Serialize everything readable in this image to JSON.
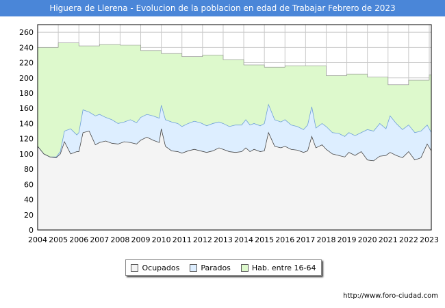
{
  "title": "Higuera de Llerena - Evolucion de la poblacion en edad de Trabajar Febrero de 2023",
  "source": "http://www.foro-ciudad.com",
  "colors": {
    "ocupados_fill": "#f4f4f4",
    "parados_fill": "#ddeeff",
    "hab_fill": "#ddf9cc",
    "line": "#444444",
    "grid": "#c8c8c8"
  },
  "chart_data": {
    "type": "area",
    "title": "Higuera de Llerena - Evolucion de la poblacion en edad de Trabajar Febrero de 2023",
    "xlim": [
      2004,
      2023.1
    ],
    "ylim": [
      0,
      270
    ],
    "yticks": [
      0,
      20,
      40,
      60,
      80,
      100,
      120,
      140,
      160,
      180,
      200,
      220,
      240,
      260
    ],
    "xticks": [
      "2004",
      "2005",
      "2006",
      "2007",
      "2008",
      "2009",
      "2010",
      "2011",
      "2012",
      "2013",
      "2014",
      "2015",
      "2016",
      "2017",
      "2018",
      "2019",
      "2020",
      "2021",
      "2022",
      "2023"
    ],
    "grid": true,
    "legend_position": "bottom-center",
    "legend": [
      "Ocupados",
      "Parados",
      "Hab. entre 16-64"
    ],
    "series": [
      {
        "name": "Hab. entre 16-64",
        "step": true,
        "x": [
          2004,
          2005,
          2006,
          2007,
          2008,
          2009,
          2010,
          2011,
          2012,
          2013,
          2014,
          2015,
          2016,
          2017,
          2018,
          2019,
          2020,
          2021,
          2022,
          2023
        ],
        "values": [
          240,
          246,
          242,
          244,
          243,
          236,
          232,
          228,
          230,
          224,
          217,
          214,
          216,
          216,
          203,
          205,
          201,
          191,
          197,
          204
        ]
      },
      {
        "name": "Parados",
        "x": [
          2004.0,
          2004.3,
          2004.6,
          2004.9,
          2005.1,
          2005.3,
          2005.6,
          2005.9,
          2006.0,
          2006.2,
          2006.5,
          2006.8,
          2007.0,
          2007.3,
          2007.6,
          2007.9,
          2008.2,
          2008.5,
          2008.8,
          2009.0,
          2009.3,
          2009.6,
          2009.9,
          2010.0,
          2010.2,
          2010.5,
          2010.8,
          2011.0,
          2011.3,
          2011.6,
          2011.9,
          2012.2,
          2012.5,
          2012.8,
          2013.0,
          2013.3,
          2013.6,
          2013.9,
          2014.1,
          2014.3,
          2014.5,
          2014.8,
          2015.0,
          2015.2,
          2015.5,
          2015.8,
          2016.0,
          2016.3,
          2016.6,
          2016.9,
          2017.1,
          2017.3,
          2017.5,
          2017.8,
          2018.0,
          2018.3,
          2018.6,
          2018.9,
          2019.1,
          2019.4,
          2019.7,
          2020.0,
          2020.3,
          2020.6,
          2020.9,
          2021.1,
          2021.4,
          2021.7,
          2022.0,
          2022.3,
          2022.6,
          2022.9,
          2023.1
        ],
        "values": [
          110,
          100,
          96,
          96,
          103,
          130,
          133,
          125,
          128,
          158,
          155,
          150,
          152,
          148,
          145,
          140,
          142,
          145,
          141,
          148,
          152,
          150,
          147,
          164,
          145,
          142,
          140,
          136,
          140,
          143,
          141,
          137,
          140,
          142,
          140,
          136,
          138,
          138,
          145,
          138,
          140,
          137,
          140,
          165,
          145,
          142,
          145,
          138,
          136,
          132,
          138,
          162,
          134,
          140,
          136,
          128,
          127,
          123,
          128,
          124,
          128,
          132,
          130,
          140,
          133,
          150,
          140,
          132,
          138,
          128,
          130,
          138,
          128
        ]
      },
      {
        "name": "Ocupados",
        "x": [
          2004.0,
          2004.3,
          2004.6,
          2004.9,
          2005.1,
          2005.3,
          2005.6,
          2005.9,
          2006.0,
          2006.2,
          2006.5,
          2006.8,
          2007.0,
          2007.3,
          2007.6,
          2007.9,
          2008.2,
          2008.5,
          2008.8,
          2009.0,
          2009.3,
          2009.6,
          2009.9,
          2010.0,
          2010.2,
          2010.5,
          2010.8,
          2011.0,
          2011.3,
          2011.6,
          2011.9,
          2012.2,
          2012.5,
          2012.8,
          2013.0,
          2013.3,
          2013.6,
          2013.9,
          2014.1,
          2014.3,
          2014.5,
          2014.8,
          2015.0,
          2015.2,
          2015.5,
          2015.8,
          2016.0,
          2016.3,
          2016.6,
          2016.9,
          2017.1,
          2017.3,
          2017.5,
          2017.8,
          2018.0,
          2018.3,
          2018.6,
          2018.9,
          2019.1,
          2019.4,
          2019.7,
          2020.0,
          2020.3,
          2020.6,
          2020.9,
          2021.1,
          2021.4,
          2021.7,
          2022.0,
          2022.3,
          2022.6,
          2022.9,
          2023.1
        ],
        "values": [
          110,
          100,
          96,
          95,
          100,
          116,
          100,
          103,
          103,
          128,
          130,
          112,
          115,
          117,
          114,
          113,
          116,
          115,
          113,
          118,
          122,
          118,
          115,
          133,
          110,
          104,
          103,
          101,
          104,
          106,
          104,
          102,
          104,
          108,
          106,
          103,
          102,
          103,
          108,
          103,
          106,
          103,
          104,
          128,
          110,
          108,
          110,
          106,
          105,
          102,
          104,
          123,
          108,
          112,
          106,
          100,
          98,
          96,
          102,
          98,
          103,
          92,
          91,
          97,
          98,
          102,
          98,
          95,
          103,
          92,
          95,
          113,
          104
        ]
      }
    ]
  }
}
